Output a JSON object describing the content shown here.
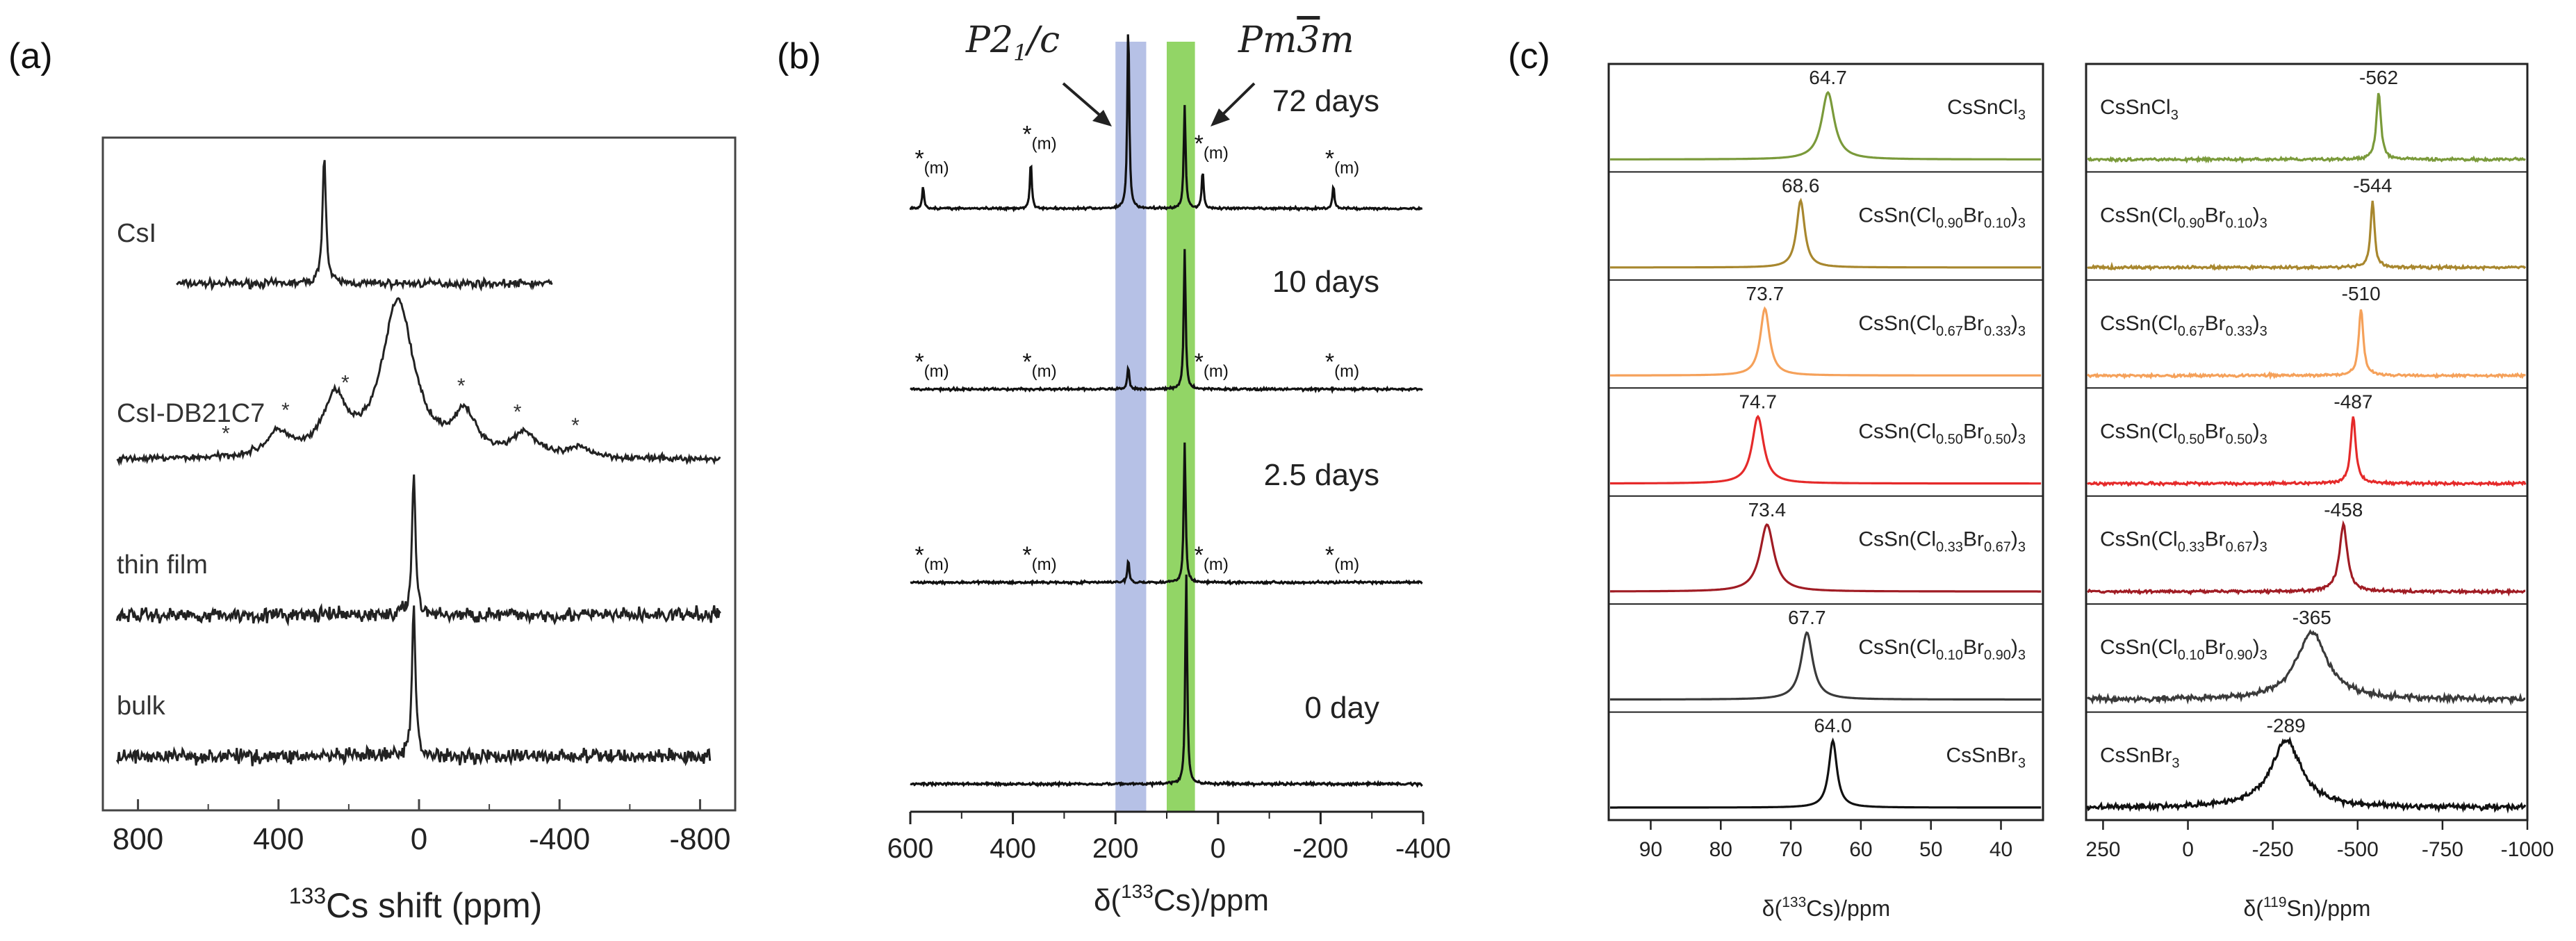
{
  "panel_labels": [
    "(a)",
    "(b)",
    "(c)"
  ],
  "chart_data": [
    {
      "id": "a",
      "type": "line",
      "title": "",
      "xlabel_sup": "133",
      "xlabel_main": "Cs shift (ppm)",
      "xlim": [
        900,
        -900
      ],
      "xticks": [
        800,
        400,
        0,
        -400,
        -800
      ],
      "xtick_labels": [
        "800",
        "400",
        "0",
        "-400",
        "-800"
      ],
      "series": [
        {
          "name": "CsI",
          "peaks": [
            {
              "center": 270,
              "height": 1.0,
              "width": 6
            }
          ],
          "noise": 0.03,
          "xrange": [
            690,
            -380
          ]
        },
        {
          "name": "CsI-DB21C7",
          "peaks": [
            {
              "center": 60,
              "height": 1.0,
              "width": 55
            },
            {
              "center": 240,
              "height": 0.35,
              "width": 40
            },
            {
              "center": 400,
              "height": 0.15,
              "width": 40
            },
            {
              "center": -130,
              "height": 0.25,
              "width": 40
            },
            {
              "center": -300,
              "height": 0.15,
              "width": 40
            },
            {
              "center": -460,
              "height": 0.06,
              "width": 40
            }
          ],
          "noise": 0.02,
          "star_positions": [
            550,
            380,
            210,
            -120,
            -280,
            -445
          ],
          "xrange": [
            860,
            -860
          ]
        },
        {
          "name": "thin film",
          "peaks": [
            {
              "center": 15,
              "height": 1.0,
              "width": 6
            }
          ],
          "noise": 0.05,
          "xrange": [
            860,
            -860
          ]
        },
        {
          "name": "bulk",
          "peaks": [
            {
              "center": 15,
              "height": 1.0,
              "width": 6
            }
          ],
          "noise": 0.05,
          "xrange": [
            860,
            -830
          ]
        }
      ]
    },
    {
      "id": "b",
      "type": "line",
      "xlabel_sup": "133",
      "xlabel_pre": "δ(",
      "xlabel_post": "Cs)/ppm",
      "xlim": [
        600,
        -400
      ],
      "xticks": [
        600,
        400,
        200,
        0,
        -200,
        -400
      ],
      "xtick_labels": [
        "600",
        "400",
        "200",
        "0",
        "-200",
        "-400"
      ],
      "bands": [
        {
          "phase": "P2_1/c",
          "from": 200,
          "to": 140,
          "color": "#a9b6e2"
        },
        {
          "phase": "Pm-3m",
          "from": 100,
          "to": 45,
          "color": "#7fce4b"
        }
      ],
      "phase_labels": {
        "left": "P2",
        "left_sub": "1",
        "left_tail": "/c",
        "right": "Pm",
        "right_bar": "3",
        "right_tail": "m"
      },
      "star_label": "*",
      "star_sub": "(m)",
      "star_positions": [
        575,
        365,
        30,
        -225
      ],
      "series": [
        {
          "name": "72 days",
          "peaks": [
            {
              "center": 175,
              "height": 1.0
            },
            {
              "center": 65,
              "height": 0.55
            },
            {
              "center": 575,
              "height": 0.12
            },
            {
              "center": 365,
              "height": 0.25
            },
            {
              "center": 30,
              "height": 0.2
            },
            {
              "center": -225,
              "height": 0.12
            }
          ]
        },
        {
          "name": "10 days",
          "peaks": [
            {
              "center": 65,
              "height": 0.75
            },
            {
              "center": 175,
              "height": 0.12
            }
          ]
        },
        {
          "name": "2.5 days",
          "peaks": [
            {
              "center": 65,
              "height": 0.75
            },
            {
              "center": 175,
              "height": 0.12
            }
          ]
        },
        {
          "name": "0 day",
          "peaks": [
            {
              "center": 62,
              "height": 1.05
            }
          ]
        }
      ]
    },
    {
      "id": "c1",
      "type": "line",
      "xlabel_sup": "133",
      "xlabel_pre": "δ(",
      "xlabel_post": "Cs)/ppm",
      "xlim": [
        96,
        34
      ],
      "xticks": [
        90,
        80,
        70,
        60,
        50,
        40
      ],
      "xtick_labels": [
        "90",
        "80",
        "70",
        "60",
        "50",
        "40"
      ],
      "series": [
        {
          "formula": "CsSnCl3",
          "peak": 64.7,
          "peak_label": "64.7",
          "color": "#7a9a3a",
          "width": 1.1
        },
        {
          "formula": "CsSn(Cl0.90Br0.10)3",
          "peak": 68.6,
          "peak_label": "68.6",
          "color": "#a8872e",
          "width": 0.7
        },
        {
          "formula": "CsSn(Cl0.67Br0.33)3",
          "peak": 73.7,
          "peak_label": "73.7",
          "color": "#f5a15a",
          "width": 0.8
        },
        {
          "formula": "CsSn(Cl0.50Br0.50)3",
          "peak": 74.7,
          "peak_label": "74.7",
          "color": "#e52a2a",
          "width": 1.0
        },
        {
          "formula": "CsSn(Cl0.33Br0.67)3",
          "peak": 73.4,
          "peak_label": "73.4",
          "color": "#a01c24",
          "width": 1.2
        },
        {
          "formula": "CsSn(Cl0.10Br0.90)3",
          "peak": 67.7,
          "peak_label": "67.7",
          "color": "#3a3a3a",
          "width": 1.0
        },
        {
          "formula": "CsSnBr3",
          "peak": 64.0,
          "peak_label": "64.0",
          "color": "#111111",
          "width": 0.7
        }
      ],
      "formula_labels": [
        {
          "pre": "CsSnCl",
          "s1": "3",
          "mid1": "",
          "s2": "",
          "mid2": "",
          "s3": "",
          "end": ""
        },
        {
          "pre": "CsSn(Cl",
          "s1": "0.90",
          "mid1": "Br",
          "s2": "0.10",
          "mid2": ")",
          "s3": "3",
          "end": ""
        },
        {
          "pre": "CsSn(Cl",
          "s1": "0.67",
          "mid1": "Br",
          "s2": "0.33",
          "mid2": ")",
          "s3": "3",
          "end": ""
        },
        {
          "pre": "CsSn(Cl",
          "s1": "0.50",
          "mid1": "Br",
          "s2": "0.50",
          "mid2": ")",
          "s3": "3",
          "end": ""
        },
        {
          "pre": "CsSn(Cl",
          "s1": "0.33",
          "mid1": "Br",
          "s2": "0.67",
          "mid2": ")",
          "s3": "3",
          "end": ""
        },
        {
          "pre": "CsSn(Cl",
          "s1": "0.10",
          "mid1": "Br",
          "s2": "0.90",
          "mid2": ")",
          "s3": "3",
          "end": ""
        },
        {
          "pre": "CsSnBr",
          "s1": "3",
          "mid1": "",
          "s2": "",
          "mid2": "",
          "s3": "",
          "end": ""
        }
      ]
    },
    {
      "id": "c2",
      "type": "line",
      "xlabel_sup": "119",
      "xlabel_pre": "δ(",
      "xlabel_post": "Sn)/ppm",
      "xlim": [
        300,
        -1000
      ],
      "xticks": [
        250,
        0,
        -250,
        -500,
        -750,
        -1000
      ],
      "xtick_labels": [
        "250",
        "0",
        "-250",
        "-500",
        "-750",
        "-1000"
      ],
      "series": [
        {
          "formula": "CsSnCl3",
          "peak": -562,
          "peak_label": "-562",
          "color": "#7a9a3a",
          "width": 8
        },
        {
          "formula": "CsSn(Cl0.90Br0.10)3",
          "peak": -544,
          "peak_label": "-544",
          "color": "#a8872e",
          "width": 7
        },
        {
          "formula": "CsSn(Cl0.67Br0.33)3",
          "peak": -510,
          "peak_label": "-510",
          "color": "#f5a15a",
          "width": 8
        },
        {
          "formula": "CsSn(Cl0.50Br0.50)3",
          "peak": -487,
          "peak_label": "-487",
          "color": "#e52a2a",
          "width": 9
        },
        {
          "formula": "CsSn(Cl0.33Br0.67)3",
          "peak": -458,
          "peak_label": "-458",
          "color": "#a01c24",
          "width": 14
        },
        {
          "formula": "CsSn(Cl0.10Br0.90)3",
          "peak": -365,
          "peak_label": "-365",
          "color": "#3a3a3a",
          "width": 55
        },
        {
          "formula": "CsSnBr3",
          "peak": -289,
          "peak_label": "-289",
          "color": "#111111",
          "width": 55
        }
      ]
    }
  ]
}
